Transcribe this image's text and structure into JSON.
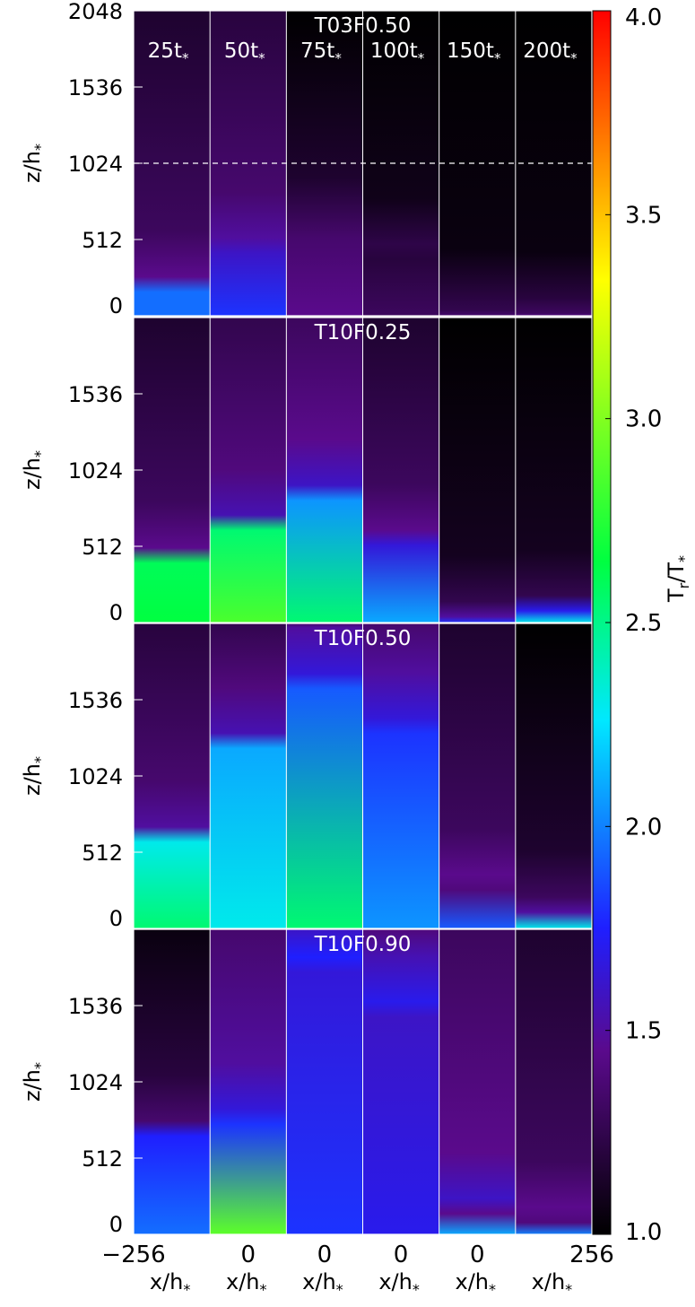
{
  "chart_data": {
    "type": "heatmap",
    "description_free": true,
    "colorbar": {
      "label": "T_r/T_*",
      "range": [
        1.0,
        4.0
      ],
      "ticks": [
        "1.0",
        "1.5",
        "2.0",
        "2.5",
        "3.0",
        "3.5",
        "4.0"
      ],
      "tick_values": [
        1.0,
        1.5,
        2.0,
        2.5,
        3.0,
        3.5,
        4.0
      ],
      "colors": [
        "#000000",
        "#5a0a8c",
        "#1f1fff",
        "#00e8ff",
        "#00ff40",
        "#ffff00",
        "#ff0000"
      ],
      "stops": [
        0.0,
        0.15,
        0.25,
        0.42,
        0.55,
        0.78,
        1.0
      ]
    },
    "columns": [
      "25t*",
      "50t*",
      "75t*",
      "100t*",
      "150t*",
      "200t*"
    ],
    "column_labels_main": [
      "25t",
      "50t",
      "75t",
      "100t",
      "150t",
      "200t"
    ],
    "x_tick_labels": [
      "−256",
      "0",
      "0",
      "0",
      "0",
      "256"
    ],
    "x_axis_label": "x/h*",
    "y_axis_label": "z/h*",
    "y_range": [
      0,
      2048
    ],
    "y_tick_labels_top_panel": [
      "0",
      "512",
      "1024",
      "1536",
      "2048"
    ],
    "y_tick_labels_other_panels": [
      "0",
      "512",
      "1024",
      "1536"
    ],
    "y_tick_values": [
      0,
      512,
      1024,
      1536,
      2048
    ],
    "dashed_line_z": 1024,
    "panels": [
      {
        "name": "T03F0.50",
        "cells": [
          {
            "front": 200,
            "base": 1.95,
            "top": 1.95,
            "glow": 1.3
          },
          {
            "front": 460,
            "base": 1.8,
            "top": 1.6,
            "glow": 1.35
          },
          {
            "front": 560,
            "base": 1.45,
            "top": 1.35,
            "glow": 1.15
          },
          {
            "front": 420,
            "base": 1.3,
            "top": 1.2,
            "glow": 1.08
          },
          {
            "front": 80,
            "base": 1.35,
            "top": 1.25,
            "glow": 1.05
          },
          {
            "front": 60,
            "base": 1.4,
            "top": 1.3,
            "glow": 1.05
          }
        ]
      },
      {
        "name": "T10F0.25",
        "cells": [
          {
            "front": 440,
            "base": 2.65,
            "top": 2.6,
            "glow": 1.3
          },
          {
            "front": 660,
            "base": 2.85,
            "top": 2.55,
            "glow": 1.4
          },
          {
            "front": 860,
            "base": 2.55,
            "top": 2.05,
            "glow": 1.45
          },
          {
            "front": 560,
            "base": 2.1,
            "top": 1.65,
            "glow": 1.3
          },
          {
            "front": 80,
            "base": 1.8,
            "top": 1.5,
            "glow": 1.1
          },
          {
            "front": 120,
            "base": 2.3,
            "top": 1.7,
            "glow": 1.1
          }
        ]
      },
      {
        "name": "T10F0.50",
        "cells": [
          {
            "front": 620,
            "base": 2.55,
            "top": 2.3,
            "glow": 1.35
          },
          {
            "front": 1250,
            "base": 2.3,
            "top": 2.1,
            "glow": 1.4
          },
          {
            "front": 1650,
            "base": 2.55,
            "top": 1.9,
            "glow": 1.5
          },
          {
            "front": 1350,
            "base": 2.05,
            "top": 1.8,
            "glow": 1.5
          },
          {
            "front": 300,
            "base": 1.9,
            "top": 1.4,
            "glow": 1.3
          },
          {
            "front": 150,
            "base": 2.3,
            "top": 1.5,
            "glow": 1.15
          }
        ]
      },
      {
        "name": "T10F0.90",
        "cells": [
          {
            "front": 700,
            "base": 1.95,
            "top": 1.75,
            "glow": 1.2
          },
          {
            "front": 780,
            "base": 2.9,
            "top": 1.8,
            "glow": 1.5
          },
          {
            "front": 1800,
            "base": 1.8,
            "top": 1.65,
            "glow": 1.6
          },
          {
            "front": 1500,
            "base": 1.7,
            "top": 1.6,
            "glow": 1.55
          },
          {
            "front": 180,
            "base": 2.1,
            "top": 1.45,
            "glow": 1.45
          },
          {
            "front": 120,
            "base": 2.0,
            "top": 1.4,
            "glow": 1.3
          }
        ]
      }
    ]
  },
  "labels": {
    "panel_titles": [
      "T03F0.50",
      "T10F0.25",
      "T10F0.50",
      "T10F0.90"
    ],
    "ylabel_main": "z/h",
    "xlabel_main": "x/h",
    "colorbar_label_main": "T",
    "colorbar_label_sub": "r",
    "colorbar_label_slash": "/T",
    "star": "*"
  }
}
